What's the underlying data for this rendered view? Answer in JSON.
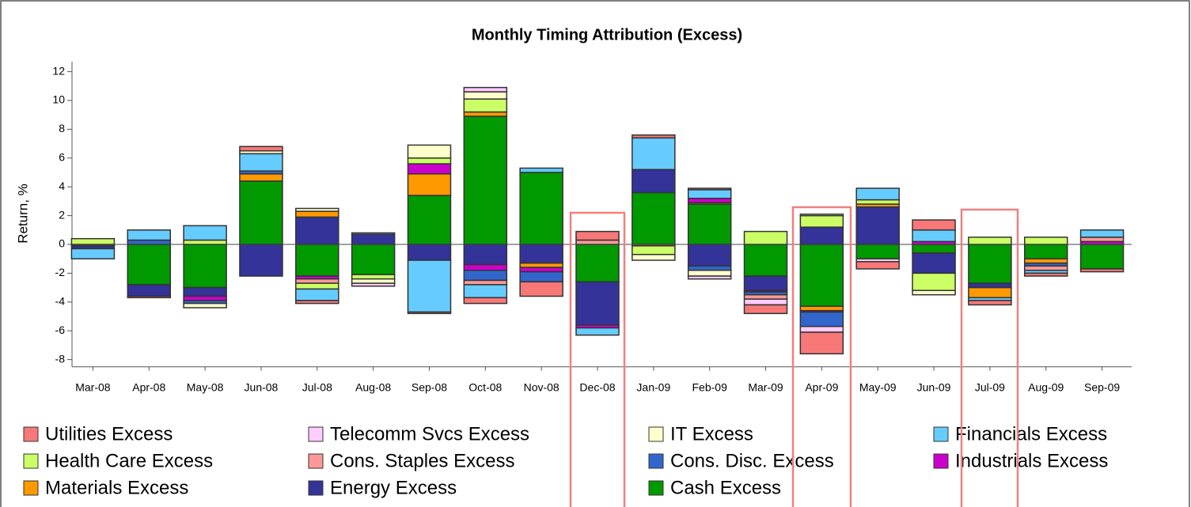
{
  "chart_data": {
    "type": "stacked_bar",
    "title": "Monthly Timing Attribution (Excess)",
    "y_label": "Return, %",
    "categories": [
      "Mar-08",
      "Apr-08",
      "May-08",
      "Jun-08",
      "Jul-08",
      "Aug-08",
      "Sep-08",
      "Oct-08",
      "Nov-08",
      "Dec-08",
      "Jan-09",
      "Feb-09",
      "Mar-09",
      "Apr-09",
      "May-09",
      "Jun-09",
      "Jul-09",
      "Aug-09",
      "Sep-09"
    ],
    "ylim": [
      -8.5,
      12.7
    ],
    "yticks": [
      -8,
      -6,
      -4,
      -2,
      0,
      2,
      4,
      6,
      8,
      10,
      12
    ],
    "series": [
      {
        "name": "Utilities Excess",
        "color": "#f87878",
        "values": [
          0,
          -0.1,
          0,
          0.3,
          -0.2,
          0,
          -0.1,
          -0.4,
          -1.0,
          0.6,
          0.2,
          0.1,
          -0.6,
          -1.5,
          -0.5,
          0.7,
          -0.3,
          -0.2,
          -0.2
        ]
      },
      {
        "name": "Telecomm Svcs Excess",
        "color": "#ffccff",
        "values": [
          0,
          0,
          0,
          0,
          0,
          -0.2,
          0,
          0.3,
          0,
          0,
          0,
          -0.2,
          -0.4,
          -0.4,
          -0.2,
          0,
          0,
          0,
          0
        ]
      },
      {
        "name": "IT Excess",
        "color": "#ffffcc",
        "values": [
          0,
          0,
          -0.3,
          0.2,
          0.2,
          -0.3,
          0.9,
          0.5,
          0,
          0,
          -0.4,
          -0.4,
          0,
          0.1,
          0,
          -0.3,
          0,
          0,
          0
        ]
      },
      {
        "name": "Financials Excess",
        "color": "#66ccff",
        "values": [
          -0.7,
          0.7,
          1.0,
          1.2,
          -0.8,
          0.1,
          -3.6,
          -0.9,
          0.3,
          -0.5,
          2.2,
          0.6,
          0,
          0,
          0.8,
          0.8,
          -0.2,
          -0.2,
          0.5
        ]
      },
      {
        "name": "Health Care Excess",
        "color": "#ccff66",
        "values": [
          0.4,
          0,
          0.3,
          0,
          -0.4,
          -0.3,
          0.4,
          0.9,
          0,
          0,
          -0.6,
          0,
          0.9,
          0.8,
          0.3,
          -1.2,
          0.5,
          0.5,
          0
        ]
      },
      {
        "name": "Cons. Staples Excess",
        "color": "#ff9999",
        "values": [
          0,
          0,
          0,
          0,
          -0.3,
          0,
          0,
          -0.3,
          0,
          0.3,
          -0.1,
          0,
          -0.3,
          0,
          0,
          0,
          0,
          -0.3,
          0.3
        ]
      },
      {
        "name": "Cons. Disc. Excess",
        "color": "#3366cc",
        "values": [
          0,
          0.3,
          -0.2,
          0.2,
          0,
          0,
          0,
          -0.7,
          -0.7,
          0,
          0,
          -0.3,
          -0.2,
          -1.0,
          0,
          0,
          0,
          -0.2,
          0
        ]
      },
      {
        "name": "Industrials Excess",
        "color": "#cc00cc",
        "values": [
          0,
          0,
          -0.3,
          0,
          -0.2,
          0,
          0.7,
          -0.4,
          -0.3,
          -0.2,
          0,
          0.3,
          -0.1,
          -0.1,
          0,
          0.2,
          0,
          0,
          0.2
        ]
      },
      {
        "name": "Materials Excess",
        "color": "#ff9900",
        "values": [
          0,
          0,
          0,
          0.5,
          0.4,
          0,
          1.5,
          0.3,
          -0.3,
          0,
          0,
          0.1,
          0,
          -0.3,
          0.2,
          0,
          -0.7,
          -0.3,
          0
        ]
      },
      {
        "name": "Energy Excess",
        "color": "#333399",
        "values": [
          -0.2,
          -0.8,
          -0.6,
          -2.2,
          1.9,
          0.7,
          -1.1,
          -1.4,
          -1.3,
          -3.0,
          1.6,
          -1.5,
          -1.0,
          1.2,
          2.6,
          -1.4,
          -0.3,
          0,
          0
        ]
      },
      {
        "name": "Cash Excess",
        "color": "#009900",
        "values": [
          -0.1,
          -2.8,
          -3.0,
          4.4,
          -2.2,
          -2.1,
          3.4,
          8.9,
          5.0,
          -2.6,
          3.6,
          2.8,
          -2.2,
          -4.3,
          -1.0,
          -0.6,
          -2.7,
          -1.0,
          -1.7
        ]
      }
    ]
  }
}
